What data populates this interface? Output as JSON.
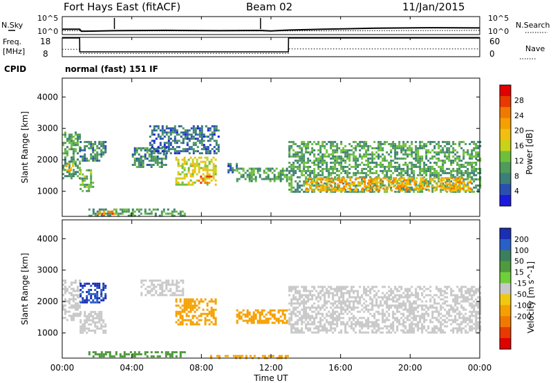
{
  "header": {
    "station": "Fort Hays East (fitACF)",
    "beam": "Beam 02",
    "date": "11/Jan/2015"
  },
  "noise_panel": {
    "left_label": "N.Sky",
    "right_label": "N.Search",
    "tick_top": "10^5",
    "tick_bottom": "10^0"
  },
  "freq_panel": {
    "left_label_1": "Freq.",
    "left_label_2": "[MHz]",
    "right_label": "Nave",
    "left_ticks": [
      "18",
      "8"
    ],
    "right_ticks": [
      "60",
      "0"
    ]
  },
  "cpid": {
    "label": "CPID",
    "value": "normal (fast) 151 IF"
  },
  "time_axis": {
    "label": "Time UT",
    "ticks": [
      "00:00",
      "04:00",
      "08:00",
      "12:00",
      "16:00",
      "20:00",
      "00:00"
    ]
  },
  "chart_data": [
    {
      "type": "line",
      "title": "N.Sky / N.Search",
      "x_unit": "hours UT",
      "xlim": [
        0,
        24
      ],
      "ylabel": "N.Sky",
      "scale": "log",
      "ticks": [
        "10^5",
        "10^0"
      ],
      "series": [
        {
          "name": "N.Sky",
          "style": "solid",
          "x": [
            0,
            1,
            1.1,
            3,
            6,
            9,
            11.4,
            12,
            13,
            15,
            18,
            21,
            24
          ],
          "values": [
            30,
            30,
            8,
            12,
            15,
            12,
            14,
            10,
            18,
            30,
            60,
            80,
            70
          ]
        },
        {
          "name": "N.Search",
          "style": "dotted",
          "x": [
            0,
            6,
            12,
            18,
            24
          ],
          "values": [
            12,
            10,
            10,
            12,
            14
          ]
        }
      ]
    },
    {
      "type": "line",
      "title": "Freq. [MHz] / Nave",
      "x_unit": "hours UT",
      "xlim": [
        0,
        24
      ],
      "ylabel": "Freq. [MHz]",
      "ylim": [
        8,
        18
      ],
      "y2label": "Nave",
      "y2lim": [
        0,
        60
      ],
      "series": [
        {
          "name": "Freq.",
          "axis": "left",
          "style": "solid",
          "x": [
            0,
            1,
            1.01,
            13,
            13.01,
            24
          ],
          "values": [
            18,
            18,
            10.5,
            10.5,
            18,
            18
          ]
        },
        {
          "name": "Nave",
          "axis": "right",
          "style": "dotted",
          "x": [
            0,
            1,
            1.01,
            13,
            13.01,
            24
          ],
          "values": [
            23,
            23,
            10,
            10,
            24,
            24
          ]
        }
      ]
    },
    {
      "type": "heatmap",
      "title": "Power",
      "xlabel": "Time UT",
      "ylabel": "Slant Range [km]",
      "colorbar_label": "Power [dB]",
      "x_unit": "hours UT",
      "xlim": [
        0,
        24
      ],
      "ylim": [
        200,
        4600
      ],
      "yticks": [
        1000,
        2000,
        3000,
        4000
      ],
      "colorbar_ticks": [
        4,
        8,
        12,
        16,
        20,
        24,
        28
      ],
      "colorbar_range": [
        0,
        31
      ],
      "colorscale": [
        "#1a1adc",
        "#2a4fb0",
        "#3b7f78",
        "#4f9a5c",
        "#6fbf3a",
        "#c8d21a",
        "#f0c010",
        "#f5a000",
        "#f07a00",
        "#e83a00",
        "#e00000"
      ],
      "echo_regions": [
        {
          "t": [
            0.0,
            1.0
          ],
          "r": [
            1400,
            2900
          ],
          "power": 10
        },
        {
          "t": [
            0.2,
            0.6
          ],
          "r": [
            1700,
            1900
          ],
          "power": 18
        },
        {
          "t": [
            1.0,
            1.8
          ],
          "r": [
            1000,
            1700
          ],
          "power": 12
        },
        {
          "t": [
            1.0,
            2.5
          ],
          "r": [
            2000,
            2600
          ],
          "power": 8
        },
        {
          "t": [
            1.5,
            7.0
          ],
          "r": [
            250,
            450
          ],
          "power": 10
        },
        {
          "t": [
            2.0,
            3.0
          ],
          "r": [
            280,
            380
          ],
          "power": 24
        },
        {
          "t": [
            4.0,
            6.0
          ],
          "r": [
            1800,
            2400
          ],
          "power": 8
        },
        {
          "t": [
            5.0,
            9.0
          ],
          "r": [
            2200,
            3100
          ],
          "power": 6
        },
        {
          "t": [
            6.5,
            8.8
          ],
          "r": [
            1200,
            2100
          ],
          "power": 16
        },
        {
          "t": [
            7.8,
            8.6
          ],
          "r": [
            1300,
            1500
          ],
          "power": 24
        },
        {
          "t": [
            9.5,
            10.2
          ],
          "r": [
            1600,
            1900
          ],
          "power": 6
        },
        {
          "t": [
            10.0,
            12.9
          ],
          "r": [
            1300,
            1750
          ],
          "power": 10
        },
        {
          "t": [
            13.0,
            24.0
          ],
          "r": [
            1000,
            2600
          ],
          "power": 10
        },
        {
          "t": [
            14.0,
            23.5
          ],
          "r": [
            1050,
            1450
          ],
          "power": 20
        }
      ]
    },
    {
      "type": "heatmap",
      "title": "Velocity",
      "xlabel": "Time UT",
      "ylabel": "Slant Range [km]",
      "colorbar_label": "Velocity [m s^-1]",
      "x_unit": "hours UT",
      "xlim": [
        0,
        24
      ],
      "ylim": [
        200,
        4600
      ],
      "yticks": [
        1000,
        2000,
        3000,
        4000
      ],
      "colorbar_ticks": [
        "200",
        "100",
        "50",
        "15",
        "-15",
        "-50",
        "-100",
        "-200"
      ],
      "colorscale": [
        "#1a2fb4",
        "#2a5fc8",
        "#3b7f5c",
        "#4f9a3c",
        "#6fcf3a",
        "#c8c8c8",
        "#f0c810",
        "#f5a000",
        "#f07a00",
        "#e83a00",
        "#e00000"
      ],
      "echo_regions": [
        {
          "t": [
            0.0,
            1.0
          ],
          "r": [
            1400,
            2700
          ],
          "velocity": 0
        },
        {
          "t": [
            1.0,
            2.5
          ],
          "r": [
            1000,
            1700
          ],
          "velocity": 0
        },
        {
          "t": [
            1.0,
            2.5
          ],
          "r": [
            2000,
            2600
          ],
          "velocity": 150
        },
        {
          "t": [
            1.5,
            7.0
          ],
          "r": [
            280,
            420
          ],
          "velocity": 40
        },
        {
          "t": [
            4.5,
            7.0
          ],
          "r": [
            2200,
            2700
          ],
          "velocity": 0
        },
        {
          "t": [
            6.5,
            8.8
          ],
          "r": [
            1300,
            2100
          ],
          "velocity": -40
        },
        {
          "t": [
            8.5,
            13.0
          ],
          "r": [
            200,
            300
          ],
          "velocity": -50
        },
        {
          "t": [
            10.0,
            12.9
          ],
          "r": [
            1300,
            1750
          ],
          "velocity": -60
        },
        {
          "t": [
            13.0,
            24.0
          ],
          "r": [
            1000,
            2500
          ],
          "velocity": 0
        }
      ]
    }
  ]
}
